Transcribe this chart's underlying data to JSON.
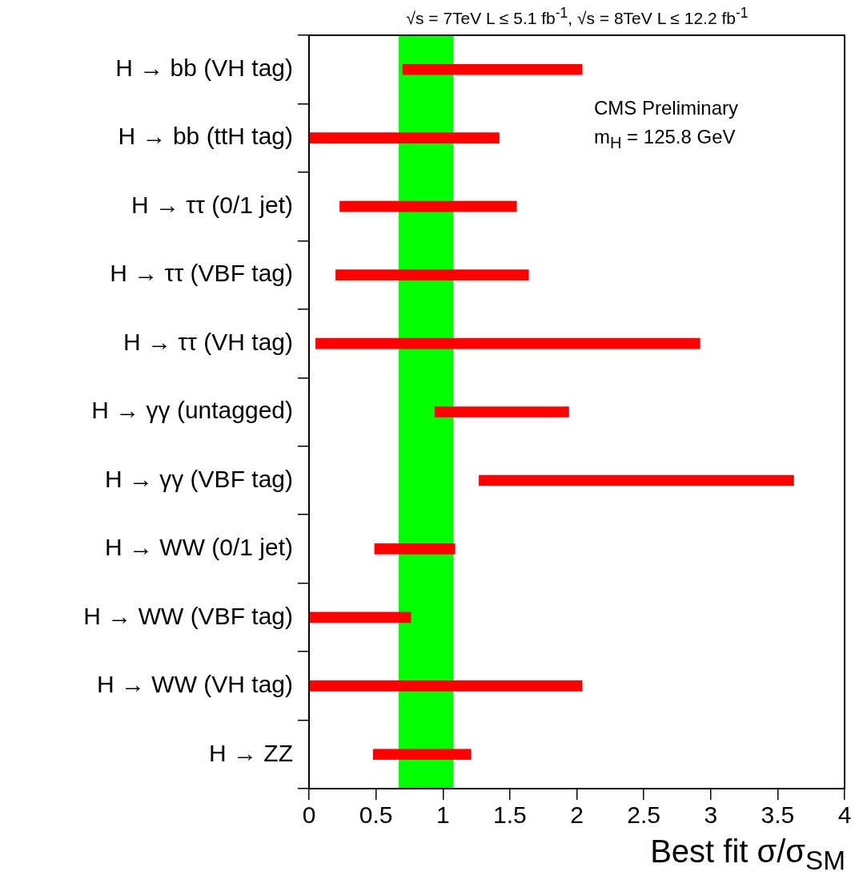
{
  "chart_data": {
    "type": "bar",
    "orientation": "horizontal",
    "title": "√s = 7TeV L ≤ 5.1 fb$^{-1}$, √s = 8TeV  L ≤ 12.2 fb$^{-1}$",
    "xlabel": "Best fit σ/σ$_{SM}$",
    "categories": [
      "H → bb (VH tag)",
      "H → bb (ttH tag)",
      "H → ττ (0/1 jet)",
      "H → ττ (VBF tag)",
      "H → ττ (VH tag)",
      "H → γγ (untagged)",
      "H → γγ (VBF tag)",
      "H → WW (0/1 jet)",
      "H → WW (VBF tag)",
      "H → WW (VH tag)",
      "H → ZZ"
    ],
    "base": [
      0.7,
      0,
      0.23,
      0.2,
      0.05,
      0.94,
      1.27,
      0.49,
      0,
      0,
      0.48
    ],
    "values": [
      1.34,
      1.42,
      1.32,
      1.44,
      2.87,
      1.0,
      2.35,
      0.6,
      0.76,
      2.04,
      0.73
    ],
    "color": "#ff0000",
    "xlim": [
      0,
      4
    ],
    "xticks": [
      0,
      0.5,
      1,
      1.5,
      2,
      2.5,
      3,
      3.5,
      4
    ],
    "bands": [
      {
        "axis": "x",
        "from": 0.67,
        "to": 1.08,
        "color": "#00ff00"
      }
    ],
    "annotations": [
      "CMS Preliminary",
      "m$_{H}$ = 125.8 GeV"
    ],
    "grid": false,
    "legend": false
  }
}
